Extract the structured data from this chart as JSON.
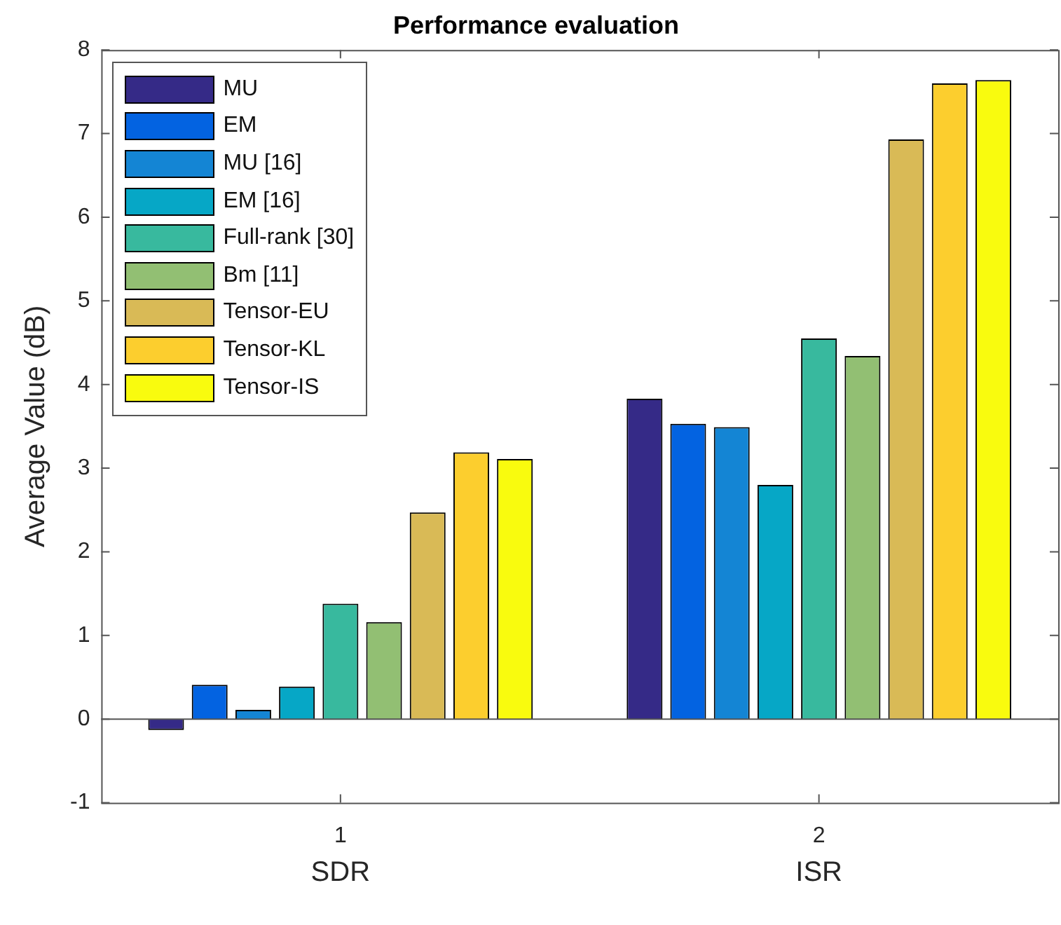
{
  "chart_data": {
    "type": "bar",
    "title": "Performance evaluation",
    "ylabel": "Average Value (dB)",
    "categories": [
      "1",
      "2"
    ],
    "annotations": [
      "SDR",
      "ISR"
    ],
    "series": [
      {
        "name": "MU",
        "color": "#352a87",
        "values": [
          -0.13,
          3.83
        ]
      },
      {
        "name": "EM",
        "color": "#0363e1",
        "values": [
          0.41,
          3.53
        ]
      },
      {
        "name": "MU [16]",
        "color": "#1485d4",
        "values": [
          0.11,
          3.49
        ]
      },
      {
        "name": "EM [16]",
        "color": "#06a7c6",
        "values": [
          0.39,
          2.8
        ]
      },
      {
        "name": "Full-rank [30]",
        "color": "#38b99e",
        "values": [
          1.38,
          4.55
        ]
      },
      {
        "name": "Bm [11]",
        "color": "#92bf73",
        "values": [
          1.16,
          4.34
        ]
      },
      {
        "name": "Tensor-EU",
        "color": "#d9ba56",
        "values": [
          2.47,
          6.93
        ]
      },
      {
        "name": "Tensor-KL",
        "color": "#fcce2e",
        "values": [
          3.19,
          7.6
        ]
      },
      {
        "name": "Tensor-IS",
        "color": "#f9fb0e",
        "values": [
          3.11,
          7.64
        ]
      }
    ],
    "ylim": [
      -1,
      8
    ],
    "yticks": [
      -1,
      0,
      1,
      2,
      3,
      4,
      5,
      6,
      7,
      8
    ],
    "ref_lines": [
      {
        "axis": "y",
        "value": 0,
        "color": "#555555"
      }
    ],
    "legend": "top left"
  }
}
